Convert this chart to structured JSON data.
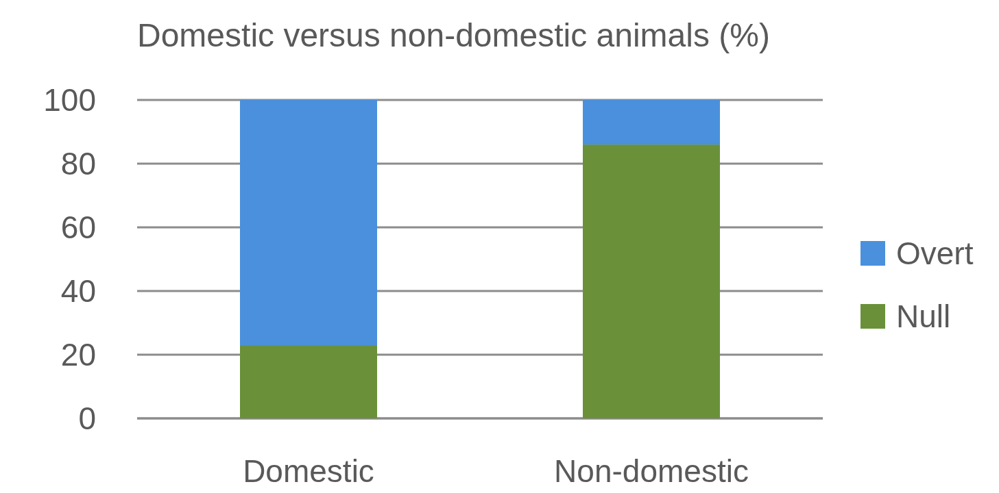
{
  "chart_data": {
    "type": "bar",
    "title": "Domestic versus non-domestic animals (%)",
    "categories": [
      "Domestic",
      "Non-domestic"
    ],
    "stacked": true,
    "series": [
      {
        "name": "Null",
        "color": "#6a913a",
        "values": [
          23,
          86
        ]
      },
      {
        "name": "Overt",
        "color": "#4a90dc",
        "values": [
          77,
          14
        ]
      }
    ],
    "ylim": [
      0,
      100
    ],
    "yticks": [
      0,
      20,
      40,
      60,
      80,
      100
    ],
    "grid": "y",
    "legend": "right"
  }
}
